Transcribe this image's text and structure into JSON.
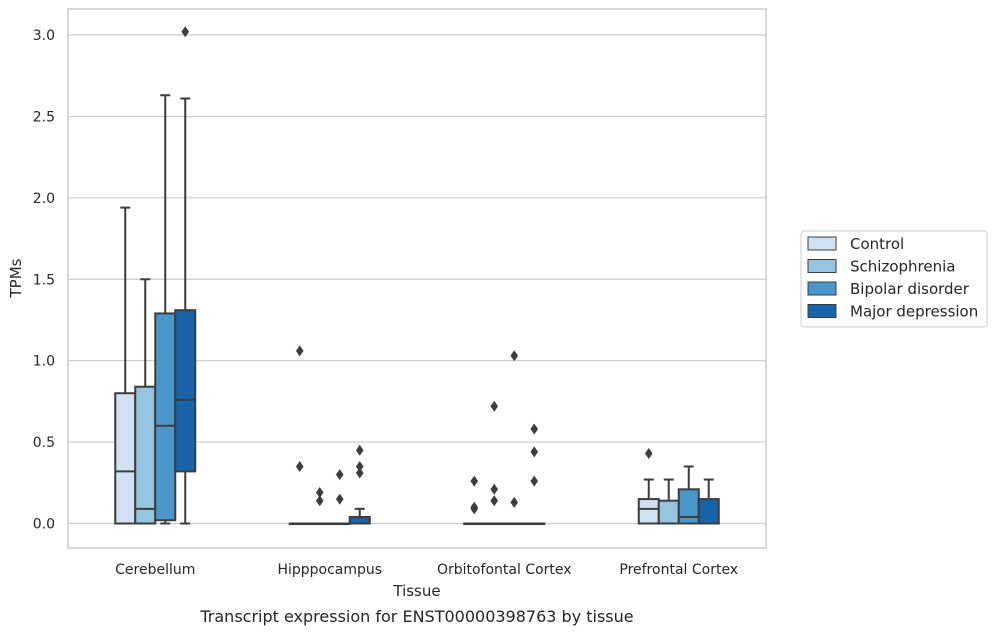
{
  "chart_data": {
    "type": "box",
    "title": "",
    "caption": "Transcript expression for ENST00000398763 by tissue",
    "xlabel": "Tissue",
    "ylabel": "TPMs",
    "ylim": [
      -0.15,
      3.18
    ],
    "yticks": [
      0.0,
      0.5,
      1.0,
      1.5,
      2.0,
      2.5,
      3.0
    ],
    "ytick_labels": [
      "0.0",
      "0.5",
      "1.0",
      "1.5",
      "2.0",
      "2.5",
      "3.0"
    ],
    "grid": "horizontal",
    "legend_position": "right",
    "categories": [
      "Cerebellum",
      "Hipppocampus",
      "Orbitofontal Cortex",
      "Prefrontal Cortex"
    ],
    "series": [
      {
        "name": "Control",
        "color": "#d0e1f2",
        "boxes": [
          {
            "q1": 0.0,
            "median": 0.32,
            "q3": 0.8,
            "whislo": 0.0,
            "whishi": 1.94,
            "fliers": []
          },
          {
            "q1": 0.0,
            "median": 0.0,
            "q3": 0.0,
            "whislo": 0.0,
            "whishi": 0.0,
            "fliers": [
              1.06,
              0.35
            ]
          },
          {
            "q1": 0.0,
            "median": 0.0,
            "q3": 0.0,
            "whislo": 0.0,
            "whishi": 0.0,
            "fliers": [
              0.26,
              0.1,
              0.09
            ]
          },
          {
            "q1": 0.0,
            "median": 0.09,
            "q3": 0.15,
            "whislo": 0.0,
            "whishi": 0.27,
            "fliers": [
              0.43
            ]
          }
        ]
      },
      {
        "name": "Schizophrenia",
        "color": "#94c4df",
        "boxes": [
          {
            "q1": 0.0,
            "median": 0.09,
            "q3": 0.84,
            "whislo": 0.0,
            "whishi": 1.5,
            "fliers": []
          },
          {
            "q1": 0.0,
            "median": 0.0,
            "q3": 0.0,
            "whislo": 0.0,
            "whishi": 0.0,
            "fliers": [
              0.19,
              0.14
            ]
          },
          {
            "q1": 0.0,
            "median": 0.0,
            "q3": 0.0,
            "whislo": 0.0,
            "whishi": 0.0,
            "fliers": [
              0.72,
              0.21,
              0.14
            ]
          },
          {
            "q1": 0.0,
            "median": 0.0,
            "q3": 0.14,
            "whislo": 0.0,
            "whishi": 0.27,
            "fliers": []
          }
        ]
      },
      {
        "name": "Bipolar disorder",
        "color": "#4a98c9",
        "boxes": [
          {
            "q1": 0.02,
            "median": 0.6,
            "q3": 1.29,
            "whislo": 0.0,
            "whishi": 2.63,
            "fliers": []
          },
          {
            "q1": 0.0,
            "median": 0.0,
            "q3": 0.0,
            "whislo": 0.0,
            "whishi": 0.0,
            "fliers": [
              0.3,
              0.15
            ]
          },
          {
            "q1": 0.0,
            "median": 0.0,
            "q3": 0.0,
            "whislo": 0.0,
            "whishi": 0.0,
            "fliers": [
              1.03,
              0.13
            ]
          },
          {
            "q1": 0.0,
            "median": 0.04,
            "q3": 0.21,
            "whislo": 0.0,
            "whishi": 0.35,
            "fliers": []
          }
        ]
      },
      {
        "name": "Major depression",
        "color": "#1764ab",
        "boxes": [
          {
            "q1": 0.32,
            "median": 0.76,
            "q3": 1.31,
            "whislo": 0.0,
            "whishi": 2.61,
            "fliers": [
              3.02
            ]
          },
          {
            "q1": 0.0,
            "median": 0.0,
            "q3": 0.04,
            "whislo": 0.0,
            "whishi": 0.09,
            "fliers": [
              0.45,
              0.35,
              0.31
            ]
          },
          {
            "q1": 0.0,
            "median": 0.0,
            "q3": 0.0,
            "whislo": 0.0,
            "whishi": 0.0,
            "fliers": [
              0.58,
              0.44,
              0.26
            ]
          },
          {
            "q1": 0.0,
            "median": 0.0,
            "q3": 0.15,
            "whislo": 0.0,
            "whishi": 0.27,
            "fliers": []
          }
        ]
      }
    ]
  }
}
